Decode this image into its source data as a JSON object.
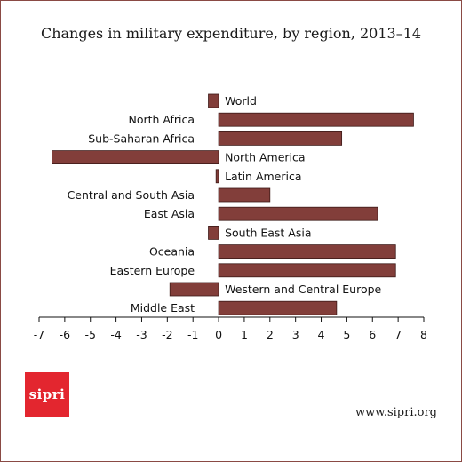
{
  "title": "Changes in military expenditure, by region, 2013–14",
  "logo_text": "sipri",
  "source_url": "www.sipri.org",
  "chart_data": {
    "type": "bar",
    "orientation": "horizontal",
    "title": "Changes in military expenditure, by region, 2013–14",
    "xlabel": "",
    "ylabel": "",
    "xlim": [
      -7,
      8
    ],
    "xticks": [
      -7,
      -6,
      -5,
      -4,
      -3,
      -2,
      -1,
      0,
      1,
      2,
      3,
      4,
      5,
      6,
      7,
      8
    ],
    "grid": false,
    "categories": [
      "World",
      "North Africa",
      "Sub-Saharan Africa",
      "North America",
      "Latin America",
      "Central and South Asia",
      "East Asia",
      "South East Asia",
      "Oceania",
      "Eastern Europe",
      "Western and Central Europe",
      "Middle East"
    ],
    "values": [
      -0.4,
      7.6,
      4.8,
      -6.5,
      -0.1,
      2.0,
      6.2,
      -0.4,
      6.9,
      6.9,
      -1.9,
      4.6
    ],
    "bar_color": "#823e3a"
  }
}
